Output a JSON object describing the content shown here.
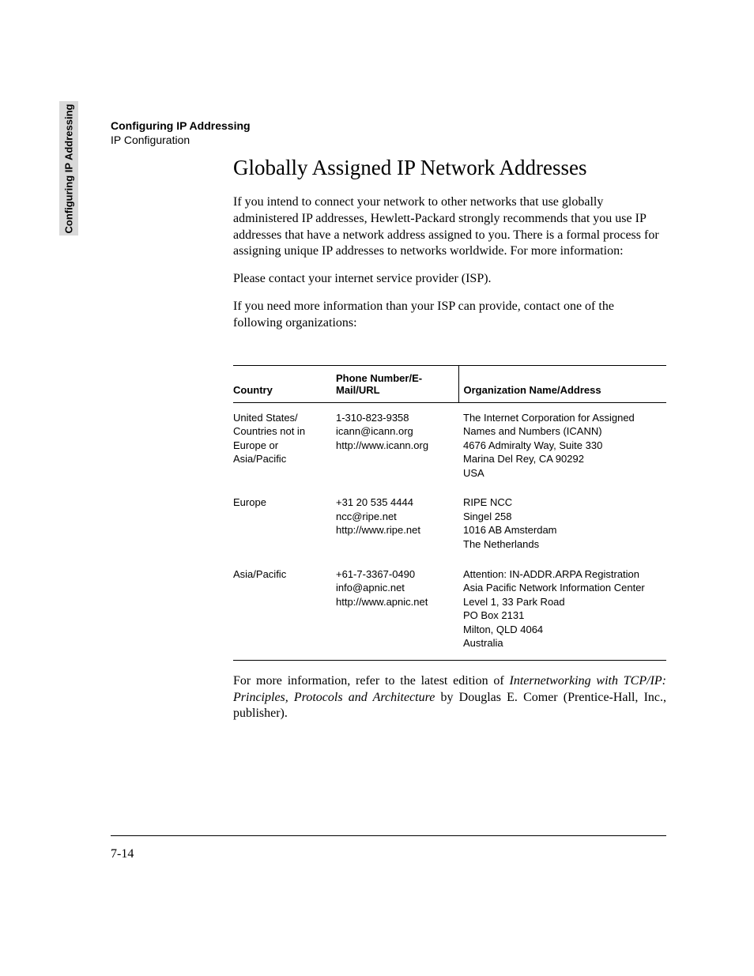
{
  "side_tab": "Configuring IP Addressing",
  "header": {
    "chapter": "Configuring IP Addressing",
    "section": "IP Configuration"
  },
  "title": "Globally Assigned IP Network Addresses",
  "paragraphs": {
    "p1": "If you intend to connect your network to other networks that use globally administered IP addresses, Hewlett-Packard strongly recommends that you use IP addresses that have a network address assigned to you. There is a formal process for assigning unique IP addresses to networks worldwide. For more information:",
    "p2": "Please contact your internet service provider (ISP).",
    "p3": "If you need more information than your ISP can provide, contact one of the following organizations:"
  },
  "table": {
    "headers": {
      "country": "Country",
      "contact": "Phone Number/E-Mail/URL",
      "org": "Organization Name/Address"
    },
    "rows": [
      {
        "country": "United States/\nCountries not in\nEurope or Asia/Pacific",
        "contact": "1-310-823-9358\nicann@icann.org\nhttp://www.icann.org",
        "org": "The Internet Corporation for Assigned\nNames and Numbers (ICANN)\n4676 Admiralty Way, Suite 330\nMarina Del Rey, CA 90292\nUSA"
      },
      {
        "country": "Europe",
        "contact": "+31 20 535 4444\nncc@ripe.net\nhttp://www.ripe.net",
        "org": "RIPE NCC\nSingel 258\n1016 AB Amsterdam\nThe Netherlands"
      },
      {
        "country": "Asia/Pacific",
        "contact": "+61-7-3367-0490\ninfo@apnic.net\nhttp://www.apnic.net",
        "org": "Attention: IN-ADDR.ARPA Registration\nAsia Pacific Network Information Center\nLevel 1, 33 Park Road\nPO Box 2131\nMilton, QLD 4064\nAustralia"
      }
    ]
  },
  "footer_note": {
    "before": "For more information, refer to the latest edition of ",
    "italic": "Internetworking with TCP/IP: Principles, Protocols and Architecture",
    "after": " by Douglas E. Comer (Prentice-Hall, Inc., publisher)."
  },
  "page_number": "7-14"
}
